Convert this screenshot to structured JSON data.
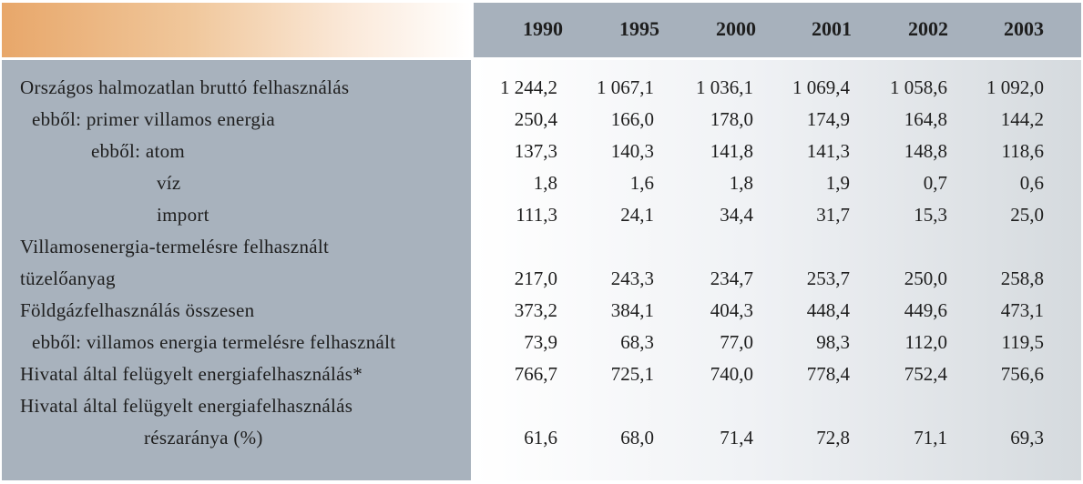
{
  "header": {
    "years": [
      "1990",
      "1995",
      "2000",
      "2001",
      "2002",
      "2003"
    ]
  },
  "rows": [
    {
      "label": "Országos halmozatlan bruttó felhasználás",
      "values": [
        "1 244,2",
        "1 067,1",
        "1 036,1",
        "1 069,4",
        "1 058,6",
        "1 092,0"
      ]
    },
    {
      "label": "ebből: primer villamos energia",
      "values": [
        "250,4",
        "166,0",
        "178,0",
        "174,9",
        "164,8",
        "144,2"
      ]
    },
    {
      "label": "ebből: atom",
      "values": [
        "137,3",
        "140,3",
        "141,8",
        "141,3",
        "148,8",
        "118,6"
      ]
    },
    {
      "label": "víz",
      "values": [
        "1,8",
        "1,6",
        "1,8",
        "1,9",
        "0,7",
        "0,6"
      ]
    },
    {
      "label": "import",
      "values": [
        "111,3",
        "24,1",
        "34,4",
        "31,7",
        "15,3",
        "25,0"
      ]
    },
    {
      "label": "Villamosenergia-termelésre felhasznált",
      "values": [
        "",
        "",
        "",
        "",
        "",
        ""
      ]
    },
    {
      "label": "tüzelőanyag",
      "values": [
        "217,0",
        "243,3",
        "234,7",
        "253,7",
        "250,0",
        "258,8"
      ]
    },
    {
      "label": "Földgázfelhasználás összesen",
      "values": [
        "373,2",
        "384,1",
        "404,3",
        "448,4",
        "449,6",
        "473,1"
      ]
    },
    {
      "label": "ebből: villamos energia termelésre felhasznált",
      "values": [
        "73,9",
        "68,3",
        "77,0",
        "98,3",
        "112,0",
        "119,5"
      ]
    },
    {
      "label": "Hivatal által felügyelt energiafelhasználás*",
      "values": [
        "766,7",
        "725,1",
        "740,0",
        "778,4",
        "752,4",
        "756,6"
      ]
    },
    {
      "label": "Hivatal által felügyelt energiafelhasználás",
      "values": [
        "",
        "",
        "",
        "",
        "",
        ""
      ]
    },
    {
      "label": "részaránya (%)",
      "values": [
        "61,6",
        "68,0",
        "71,4",
        "72,8",
        "71,1",
        "69,3"
      ]
    }
  ]
}
